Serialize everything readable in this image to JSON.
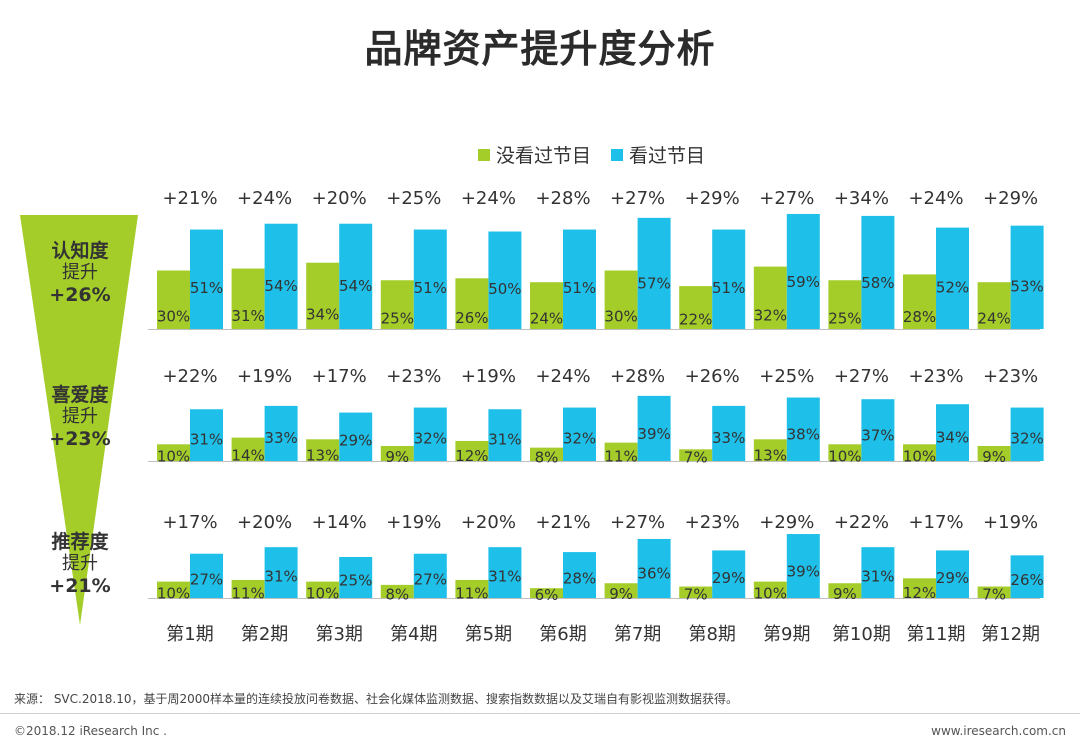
{
  "title": "品牌资产提升度分析",
  "legend": [
    {
      "label": "没看过节目",
      "color": "#a4cd2a"
    },
    {
      "label": "看过节目",
      "color": "#1ec0ea"
    }
  ],
  "funnel": {
    "color": "#a4cd2a",
    "items": [
      {
        "name": "认知度",
        "sub": "提升",
        "value": "+26%"
      },
      {
        "name": "喜爱度",
        "sub": "提升",
        "value": "+23%"
      },
      {
        "name": "推荐度",
        "sub": "提升",
        "value": "+21%"
      }
    ]
  },
  "chart_data": {
    "type": "bar",
    "categories": [
      "第1期",
      "第2期",
      "第3期",
      "第4期",
      "第5期",
      "第6期",
      "第7期",
      "第8期",
      "第9期",
      "第10期",
      "第11期",
      "第12期"
    ],
    "panels": [
      {
        "name": "认知度",
        "series": [
          {
            "name": "没看过节目",
            "values": [
              30,
              31,
              34,
              25,
              26,
              24,
              30,
              22,
              32,
              25,
              28,
              24
            ]
          },
          {
            "name": "看过节目",
            "values": [
              51,
              54,
              54,
              51,
              50,
              51,
              57,
              51,
              59,
              58,
              52,
              53
            ]
          }
        ],
        "lift_labels": [
          "+21%",
          "+24%",
          "+20%",
          "+25%",
          "+24%",
          "+28%",
          "+27%",
          "+29%",
          "+27%",
          "+34%",
          "+24%",
          "+29%"
        ]
      },
      {
        "name": "喜爱度",
        "series": [
          {
            "name": "没看过节目",
            "values": [
              10,
              14,
              13,
              9,
              12,
              8,
              11,
              7,
              13,
              10,
              10,
              9
            ]
          },
          {
            "name": "看过节目",
            "values": [
              31,
              33,
              29,
              32,
              31,
              32,
              39,
              33,
              38,
              37,
              34,
              32
            ]
          }
        ],
        "lift_labels": [
          "+22%",
          "+19%",
          "+17%",
          "+23%",
          "+19%",
          "+24%",
          "+28%",
          "+26%",
          "+25%",
          "+27%",
          "+23%",
          "+23%"
        ]
      },
      {
        "name": "推荐度",
        "series": [
          {
            "name": "没看过节目",
            "values": [
              10,
              11,
              10,
              8,
              11,
              6,
              9,
              7,
              10,
              9,
              12,
              7
            ]
          },
          {
            "name": "看过节目",
            "values": [
              27,
              31,
              25,
              27,
              31,
              28,
              36,
              29,
              39,
              31,
              29,
              26
            ]
          }
        ],
        "lift_labels": [
          "+17%",
          "+20%",
          "+14%",
          "+19%",
          "+20%",
          "+21%",
          "+27%",
          "+23%",
          "+29%",
          "+22%",
          "+17%",
          "+19%"
        ]
      }
    ],
    "title": "品牌资产提升度分析",
    "xlabel": "",
    "ylabel": ""
  },
  "source": "来源： SVC.2018.10，基于周2000样本量的连续投放问卷数据、社会化媒体监测数据、搜索指数数据以及艾瑞自有影视监测数据获得。",
  "copyright": "©2018.12 iResearch Inc .",
  "website": "www.iresearch.com.cn"
}
